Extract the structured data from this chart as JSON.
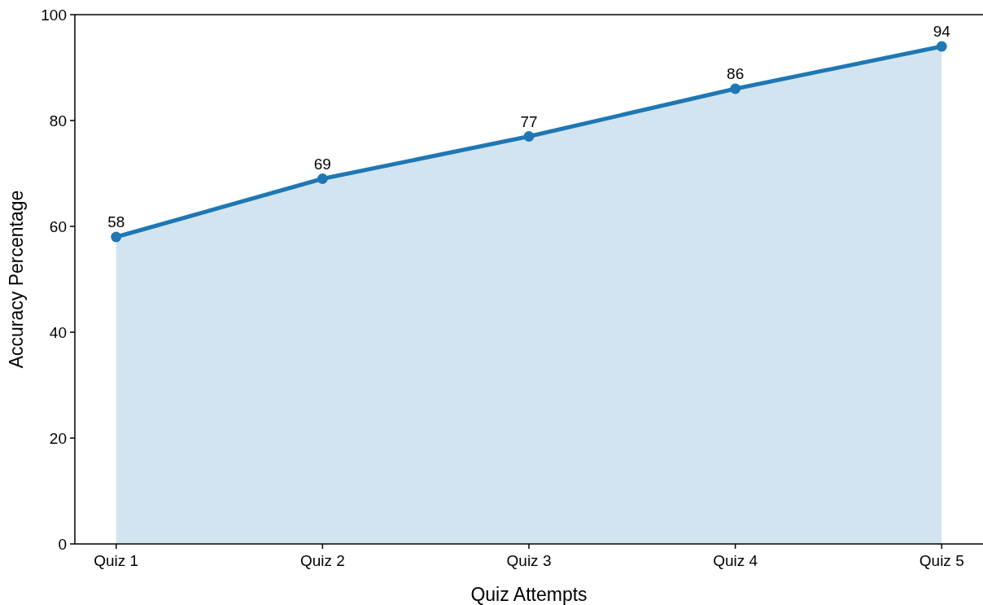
{
  "chart_data": {
    "type": "area",
    "xlabel": "Quiz Attempts",
    "ylabel": "Accuracy Percentage",
    "categories": [
      "Quiz 1",
      "Quiz 2",
      "Quiz 3",
      "Quiz 4",
      "Quiz 5"
    ],
    "series": [
      {
        "color": "#1f77b4",
        "values": [
          58,
          69,
          77,
          86,
          94
        ]
      }
    ],
    "ylim": [
      0,
      100
    ],
    "yticks": [
      0,
      20,
      40,
      60,
      80,
      100
    ],
    "marker": "circle",
    "data_labels": true
  }
}
